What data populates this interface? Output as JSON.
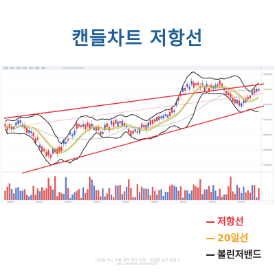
{
  "title": "캔들차트 저항선",
  "legend": [
    {
      "label": "저항선",
      "color": "#e8303a"
    },
    {
      "label": "20일선",
      "color": "#f2a21b"
    },
    {
      "label": "볼린저밴드",
      "color": "#222222"
    }
  ],
  "footer": {
    "line1": "시간을 버는 금융 상식 정보 전문 - 점점한 날가 일유고",
    "line2": "rec.chaehe.story.co.kr"
  },
  "chart_data": {
    "type": "line",
    "series": [
      {
        "name": "저항선",
        "color": "#e8303a"
      },
      {
        "name": "20일선",
        "color": "#f2a21b"
      },
      {
        "name": "볼린저밴드",
        "color": "#222222"
      }
    ],
    "grid": true
  }
}
